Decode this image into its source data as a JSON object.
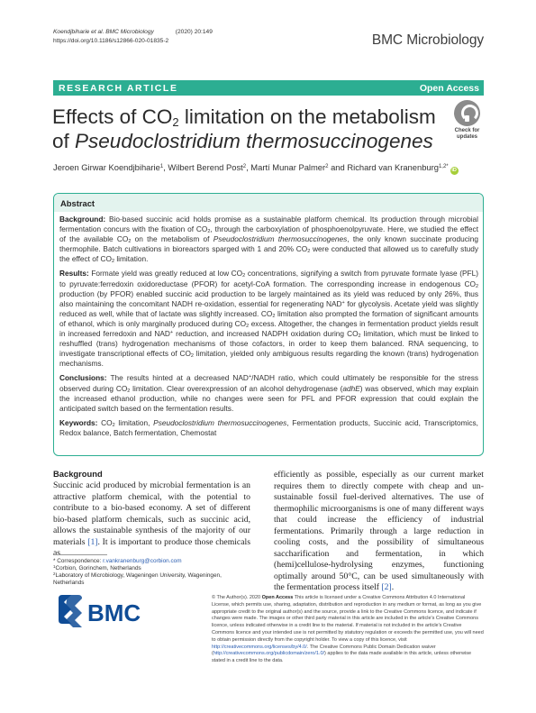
{
  "header": {
    "citation": "Koendjbiharie et al. BMC Microbiology",
    "year_vol": "(2020) 20:149",
    "doi": "https://doi.org/10.1186/s12866-020-01835-2",
    "journal": "BMC Microbiology"
  },
  "banner": {
    "article_type": "RESEARCH ARTICLE",
    "access": "Open Access"
  },
  "title": {
    "line1_pre": "Effects of CO",
    "line1_sub": "2",
    "line1_post": " limitation on the metabolism",
    "line2_pre": "of ",
    "line2_italic": "Pseudoclostridium thermosuccinogenes"
  },
  "badge": {
    "label1": "Check for",
    "label2": "updates"
  },
  "authors": {
    "a1": "Jeroen Girwar Koendjbiharie",
    "a1_sup": "1",
    "a2": ", Wilbert Berend Post",
    "a2_sup": "2",
    "a3": ", Martí Munar Palmer",
    "a3_sup": "2",
    "a4": " and Richard van Kranenburg",
    "a4_sup": "1,2*",
    "orcid": "iD"
  },
  "abstract": {
    "heading": "Abstract",
    "background_label": "Background:",
    "background_1": " Bio-based succinic acid holds promise as a sustainable platform chemical. Its production through microbial fermentation concurs with the fixation of CO",
    "background_2": ", through the carboxylation of phosphoenolpyruvate. Here, we studied the effect of the available CO",
    "background_3": " on the metabolism of ",
    "background_italic": "Pseudoclostridium thermosuccinogenes",
    "background_4": ", the only known succinate producing thermophile. Batch cultivations in bioreactors sparged with 1 and 20% CO",
    "background_5": " were conducted that allowed us to carefully study the effect of CO",
    "background_6": " limitation.",
    "results_label": "Results:",
    "results_1": " Formate yield was greatly reduced at low CO",
    "results_2": " concentrations, signifying a switch from pyruvate formate lyase (PFL) to pyruvate:ferredoxin oxidoreductase (PFOR) for acetyl-CoA formation. The corresponding increase in endogenous CO",
    "results_3": " production (by PFOR) enabled succinic acid production to be largely maintained as its yield was reduced by only 26%, thus also maintaining the concomitant NADH re-oxidation, essential for regenerating NAD",
    "results_4": " for glycolysis. Acetate yield was slightly reduced as well, while that of lactate was slightly increased. CO",
    "results_5": " limitation also prompted the formation of significant amounts of ethanol, which is only marginally produced during CO",
    "results_6": " excess. Altogether, the changes in fermentation product yields result in increased ferredoxin and NAD",
    "results_7": " reduction, and increased NADPH oxidation during CO",
    "results_8": " limitation, which must be linked to reshuffled (trans) hydrogenation mechanisms of those cofactors, in order to keep them balanced. RNA sequencing, to investigate transcriptional effects of CO",
    "results_9": " limitation, yielded only ambiguous results regarding the known (trans) hydrogenation mechanisms.",
    "conclusions_label": "Conclusions:",
    "conclusions_1": " The results hinted at a decreased NAD",
    "conclusions_2": "/NADH ratio, which could ultimately be responsible for the stress observed during CO",
    "conclusions_3": " limitation. Clear overexpression of an alcohol dehydrogenase (",
    "conclusions_italic": "adhE",
    "conclusions_4": ") was observed, which may explain the increased ethanol production, while no changes were seen for PFL and PFOR expression that could explain the anticipated switch based on the fermentation results.",
    "keywords_label": "Keywords:",
    "keywords_1": " CO",
    "keywords_2": " limitation, ",
    "keywords_italic": "Pseudoclostridium thermosuccinogenes",
    "keywords_3": ", Fermentation products, Succinic acid, Transcriptomics, Redox balance, Batch fermentation, Chemostat",
    "sub2": "2",
    "sup_plus": "+"
  },
  "background_section": {
    "heading": "Background",
    "left_text": "Succinic acid produced by microbial fermentation is an attractive platform chemical, with the potential to contribute to a bio-based economy. A set of different bio-based platform chemicals, such as succinic acid, allows the sustainable synthesis of the majority of our materials ",
    "left_ref": "[1]",
    "left_tail": ". It is important to produce those chemicals as",
    "right_text": "efficiently as possible, especially as our current market requires them to directly compete with cheap and un-sustainable fossil fuel-derived alternatives. The use of thermophilic microorganisms is one of many different ways that could increase the efficiency of industrial fermentations. Primarily through a large reduction in cooling costs, and the possibility of simultaneous saccharification and fermentation, in which (hemi)cellulose-hydrolysing enzymes, functioning optimally around 50°C, can be used simultaneously with the fermentation process itself ",
    "right_ref": "[2]",
    "right_tail": "."
  },
  "footnotes": {
    "corr_label": "* Correspondence: ",
    "corr_email": "r.vankranenburg@corbion.com",
    "aff1_sup": "1",
    "aff1": "Corbion, Gorinchem, Netherlands",
    "aff2_sup": "2",
    "aff2": "Laboratory of Microbiology, Wageningen University, Wageningen, Netherlands"
  },
  "publisher": {
    "logo_text": "BMC"
  },
  "license": {
    "lead": "© The Author(s). 2020 ",
    "open_access": "Open Access",
    "text1": " This article is licensed under a Creative Commons Attribution 4.0 International License, which permits use, sharing, adaptation, distribution and reproduction in any medium or format, as long as you give appropriate credit to the original author(s) and the source, provide a link to the Creative Commons licence, and indicate if changes were made. The images or other third party material in this article are included in the article's Creative Commons licence, unless indicated otherwise in a credit line to the material. If material is not included in the article's Creative Commons licence and your intended use is not permitted by statutory regulation or exceeds the permitted use, you will need to obtain permission directly from the copyright holder. To view a copy of this licence, visit ",
    "link1": "http://creativecommons.org/licenses/by/4.0/",
    "text2": ". The Creative Commons Public Domain Dedication waiver (",
    "link2": "http://creativecommons.org/publicdomain/zero/1.0/",
    "text3": ") applies to the data made available in this article, unless otherwise stated in a credit line to the data."
  },
  "colors": {
    "accent": "#2cae92",
    "abstract_head_bg": "#e3f3ee",
    "link": "#2a5db0",
    "brand_blue": "#0f4c96"
  }
}
